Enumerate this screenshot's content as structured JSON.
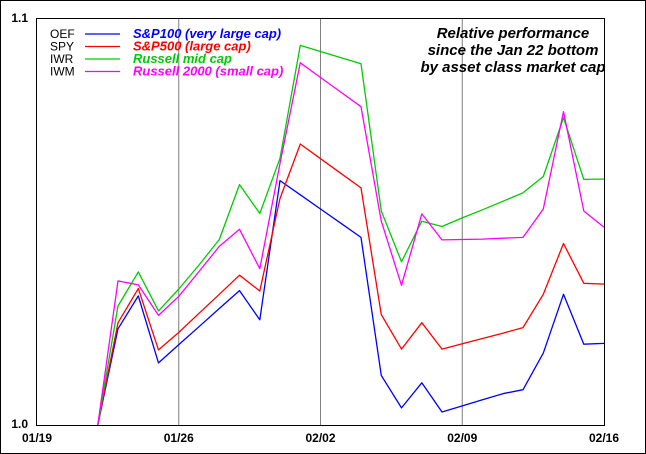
{
  "chart_data": {
    "type": "line",
    "title": "",
    "xlabel": "",
    "ylabel": "",
    "ylim": [
      1.0,
      1.1
    ],
    "y_ticks": [
      "1.0",
      "1.1"
    ],
    "x_ticks": [
      {
        "day": 0,
        "label": "01/19"
      },
      {
        "day": 7,
        "label": "01/26"
      },
      {
        "day": 14,
        "label": "02/02"
      },
      {
        "day": 21,
        "label": "02/09"
      },
      {
        "day": 28,
        "label": "02/16"
      }
    ],
    "xlim": [
      0,
      28
    ],
    "grid": "vertical lines at week ticks",
    "legend": "top-left",
    "annotation": [
      "Relative performance",
      "since the Jan 22 bottom",
      "by asset class market cap"
    ],
    "x": [
      3,
      4,
      5,
      6,
      7,
      8,
      9,
      10,
      11,
      12,
      13,
      14,
      15,
      16,
      17,
      18,
      19,
      20,
      21,
      22,
      23,
      24,
      25,
      26,
      27,
      28
    ],
    "series": [
      {
        "ticker": "OEF",
        "name": "S&P100 (very large cap)",
        "color": "#0000ff",
        "values": [
          1.0,
          1.0237,
          1.0318,
          1.0153,
          1.0198,
          1.0242,
          1.0287,
          1.0331,
          1.0259,
          1.0602,
          1.0567,
          1.0532,
          1.0497,
          1.0462,
          1.0122,
          1.0042,
          1.0104,
          1.0032,
          1.0047,
          1.0062,
          1.0077,
          1.0087,
          1.0177,
          1.0322,
          1.0199,
          1.0201
        ]
      },
      {
        "ticker": "SPY",
        "name": "S&P500 (large cap)",
        "color": "#ff0000",
        "values": [
          1.0,
          1.0252,
          1.0336,
          1.0185,
          1.0228,
          1.0275,
          1.0322,
          1.0369,
          1.033,
          1.0558,
          1.0692,
          1.0656,
          1.062,
          1.0584,
          1.0272,
          1.0187,
          1.0252,
          1.0187,
          1.02,
          1.0213,
          1.0226,
          1.024,
          1.0322,
          1.0447,
          1.0349,
          1.0347
        ]
      },
      {
        "ticker": "IWR",
        "name": "Russell mid cap",
        "color": "#00cc00",
        "values": [
          1.0,
          1.0293,
          1.0377,
          1.0281,
          1.0335,
          1.0394,
          1.0457,
          1.0592,
          1.0521,
          1.0657,
          1.0935,
          1.092,
          1.0905,
          1.089,
          1.0527,
          1.0402,
          1.0502,
          1.0489,
          1.051,
          1.053,
          1.0551,
          1.0572,
          1.0612,
          1.0757,
          1.0605,
          1.0606
        ]
      },
      {
        "ticker": "IWM",
        "name": "Russell 2000 (small cap)",
        "color": "#ff00ff",
        "values": [
          1.0,
          1.0355,
          1.0345,
          1.027,
          1.0317,
          1.0378,
          1.044,
          1.0482,
          1.0385,
          1.0644,
          1.0892,
          1.0856,
          1.082,
          1.0784,
          1.0502,
          1.0344,
          1.052,
          1.0456,
          1.0457,
          1.0458,
          1.046,
          1.0462,
          1.0532,
          1.0772,
          1.0527,
          1.0487
        ]
      }
    ]
  }
}
